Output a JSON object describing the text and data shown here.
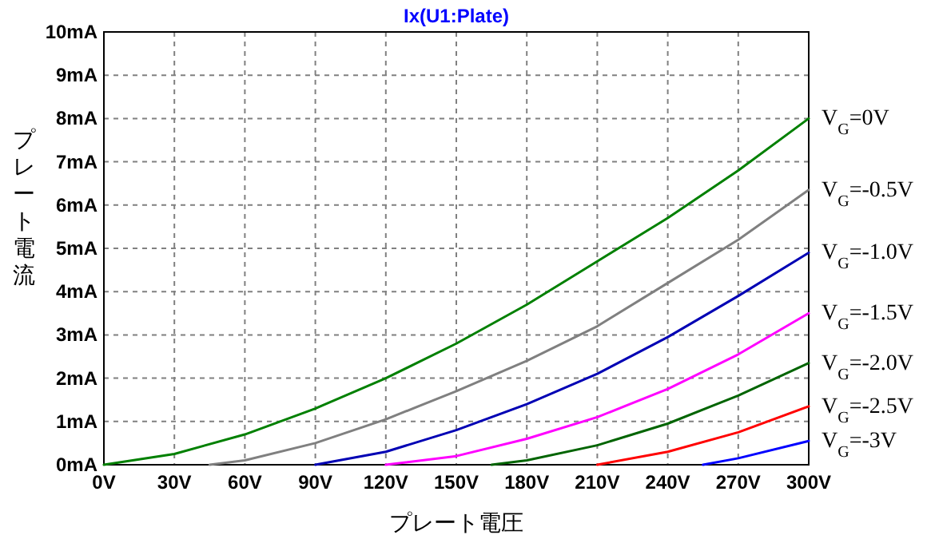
{
  "chart_data": {
    "type": "line",
    "title": "Ix(U1:Plate)",
    "xlabel": "プレート電圧",
    "ylabel": "プレート電流",
    "xlim": [
      0,
      300
    ],
    "ylim": [
      0,
      10
    ],
    "xticks": [
      {
        "value": 0,
        "label": "0V"
      },
      {
        "value": 30,
        "label": "30V"
      },
      {
        "value": 60,
        "label": "60V"
      },
      {
        "value": 90,
        "label": "90V"
      },
      {
        "value": 120,
        "label": "120V"
      },
      {
        "value": 150,
        "label": "150V"
      },
      {
        "value": 180,
        "label": "180V"
      },
      {
        "value": 210,
        "label": "210V"
      },
      {
        "value": 240,
        "label": "240V"
      },
      {
        "value": 270,
        "label": "270V"
      },
      {
        "value": 300,
        "label": "300V"
      }
    ],
    "yticks": [
      {
        "value": 0,
        "label": "0mA"
      },
      {
        "value": 1,
        "label": "1mA"
      },
      {
        "value": 2,
        "label": "2mA"
      },
      {
        "value": 3,
        "label": "3mA"
      },
      {
        "value": 4,
        "label": "4mA"
      },
      {
        "value": 5,
        "label": "5mA"
      },
      {
        "value": 6,
        "label": "6mA"
      },
      {
        "value": 7,
        "label": "7mA"
      },
      {
        "value": 8,
        "label": "8mA"
      },
      {
        "value": 9,
        "label": "9mA"
      },
      {
        "value": 10,
        "label": "10mA"
      }
    ],
    "grid": true,
    "marker": "none",
    "line_style": "solid",
    "series": [
      {
        "name": "V$_{G}$=0V",
        "color": "#008000",
        "x": [
          0,
          30,
          60,
          90,
          120,
          150,
          180,
          210,
          240,
          270,
          300
        ],
        "values": [
          0,
          0.25,
          0.7,
          1.3,
          2.0,
          2.8,
          3.7,
          4.7,
          5.7,
          6.8,
          8.0
        ]
      },
      {
        "name": "V$_{G}$=-0.5V",
        "color": "#808080",
        "x": [
          45,
          60,
          90,
          120,
          150,
          180,
          210,
          240,
          270,
          300
        ],
        "values": [
          0,
          0.1,
          0.5,
          1.05,
          1.7,
          2.4,
          3.2,
          4.2,
          5.2,
          6.35
        ]
      },
      {
        "name": "V$_{G}$=-1.0V",
        "color": "#0000b4",
        "x": [
          90,
          120,
          150,
          180,
          210,
          240,
          270,
          300
        ],
        "values": [
          0,
          0.3,
          0.8,
          1.4,
          2.1,
          2.95,
          3.9,
          4.9
        ]
      },
      {
        "name": "V$_{G}$=-1.5V",
        "color": "#ff00ff",
        "x": [
          120,
          150,
          180,
          210,
          240,
          270,
          300
        ],
        "values": [
          0,
          0.2,
          0.6,
          1.1,
          1.75,
          2.55,
          3.5
        ]
      },
      {
        "name": "V$_{G}$=-2.0V",
        "color": "#006400",
        "x": [
          165,
          180,
          210,
          240,
          270,
          300
        ],
        "values": [
          0,
          0.1,
          0.45,
          0.95,
          1.6,
          2.35
        ]
      },
      {
        "name": "V$_{G}$=-2.5V",
        "color": "#ff0000",
        "x": [
          210,
          240,
          270,
          300
        ],
        "values": [
          0,
          0.3,
          0.75,
          1.35
        ]
      },
      {
        "name": "V$_{G}$=-3V",
        "color": "#0000ff",
        "x": [
          255,
          270,
          300
        ],
        "values": [
          0,
          0.15,
          0.55
        ]
      }
    ]
  }
}
